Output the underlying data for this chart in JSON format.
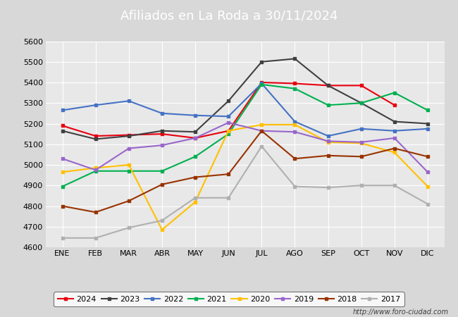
{
  "title": "Afiliados en La Roda a 30/11/2024",
  "title_bg_color": "#4a7cc7",
  "title_text_color": "white",
  "ylim": [
    4600,
    5600
  ],
  "yticks": [
    4600,
    4700,
    4800,
    4900,
    5000,
    5100,
    5200,
    5300,
    5400,
    5500,
    5600
  ],
  "months": [
    "ENE",
    "FEB",
    "MAR",
    "ABR",
    "MAY",
    "JUN",
    "JUL",
    "AGO",
    "SEP",
    "OCT",
    "NOV",
    "DIC"
  ],
  "series": {
    "2024": {
      "color": "#e8000d",
      "linewidth": 1.5,
      "data": [
        5190,
        5140,
        5145,
        5150,
        5130,
        5165,
        5400,
        5395,
        5385,
        5385,
        5290,
        null
      ]
    },
    "2023": {
      "color": "#404040",
      "linewidth": 1.5,
      "data": [
        5165,
        5125,
        5140,
        5165,
        5160,
        5310,
        5500,
        5515,
        5385,
        5300,
        5210,
        5200
      ]
    },
    "2022": {
      "color": "#4472c4",
      "linewidth": 1.5,
      "data": [
        5265,
        5290,
        5310,
        5250,
        5240,
        5235,
        5395,
        5210,
        5140,
        5175,
        5165,
        5175
      ]
    },
    "2021": {
      "color": "#00b050",
      "linewidth": 1.5,
      "data": [
        4895,
        4970,
        4970,
        4970,
        5040,
        5150,
        5390,
        5370,
        5290,
        5300,
        5350,
        5265
      ]
    },
    "2020": {
      "color": "#ffc000",
      "linewidth": 1.5,
      "data": [
        4965,
        4985,
        5000,
        4685,
        4820,
        5165,
        5195,
        5195,
        5110,
        5105,
        5060,
        4895
      ]
    },
    "2019": {
      "color": "#9966cc",
      "linewidth": 1.5,
      "data": [
        5030,
        4975,
        5080,
        5095,
        5130,
        5205,
        5165,
        5160,
        5115,
        5110,
        5130,
        4965
      ]
    },
    "2018": {
      "color": "#993300",
      "linewidth": 1.5,
      "data": [
        4800,
        4770,
        4825,
        4905,
        4940,
        4955,
        5165,
        5030,
        5045,
        5040,
        5080,
        5040
      ]
    },
    "2017": {
      "color": "#b0b0b0",
      "linewidth": 1.5,
      "data": [
        4645,
        4645,
        4695,
        4730,
        4840,
        4840,
        5090,
        4895,
        4890,
        4900,
        4900,
        4810
      ]
    }
  },
  "legend_order": [
    "2024",
    "2023",
    "2022",
    "2021",
    "2020",
    "2019",
    "2018",
    "2017"
  ],
  "bg_color": "#d8d8d8",
  "plot_bg_color": "#e8e8e8",
  "grid_color": "white",
  "footer_url": "http://www.foro-ciudad.com"
}
